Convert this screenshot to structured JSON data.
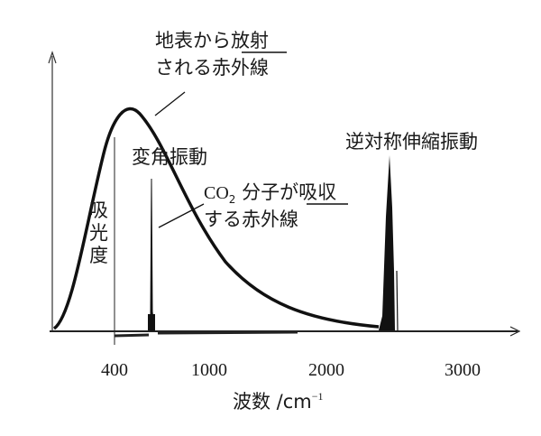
{
  "figure": {
    "emission_label_line1": "地表から放射",
    "emission_label_line1_plain": "地表から",
    "emission_label_line1_underlined": "放射",
    "emission_label_line2": "される赤外線",
    "bending_label": "変角振動",
    "asym_stretch_label": "逆対称伸縮振動",
    "absorb_label_line1_prefix": "CO",
    "absorb_label_line1_sub": "2",
    "absorb_label_line1_mid": " 分子が",
    "absorb_label_line1_underlined": "吸収",
    "absorb_label_line2": "する赤外線",
    "absorbance_label": [
      "吸",
      "光",
      "度"
    ]
  },
  "chart_data": {
    "type": "line",
    "xlabel": "波数 /cm⁻¹",
    "xlabel_main": "波数 /cm",
    "xlabel_sup": "−1",
    "ylabel": "吸光度",
    "x_ticks": [
      "400",
      "1000",
      "2000",
      "3000"
    ],
    "x_tick_values": [
      400,
      1000,
      2000,
      3000
    ],
    "xlim": [
      0,
      3400
    ],
    "series": [
      {
        "name": "地表から放射される赤外線",
        "x": [
          0,
          150,
          300,
          450,
          600,
          800,
          1000,
          1200,
          1400,
          1600,
          1800,
          2000,
          2300
        ],
        "y": [
          0.02,
          0.45,
          0.85,
          1.0,
          0.95,
          0.78,
          0.58,
          0.4,
          0.26,
          0.15,
          0.08,
          0.04,
          0.01
        ]
      },
      {
        "name": "CO2 分子が吸収する赤外線",
        "peaks": [
          {
            "label": "変角振動",
            "x": 667,
            "y": 0.68
          },
          {
            "label": "逆対称伸縮振動",
            "x": 2349,
            "y": 0.8
          }
        ]
      }
    ]
  }
}
